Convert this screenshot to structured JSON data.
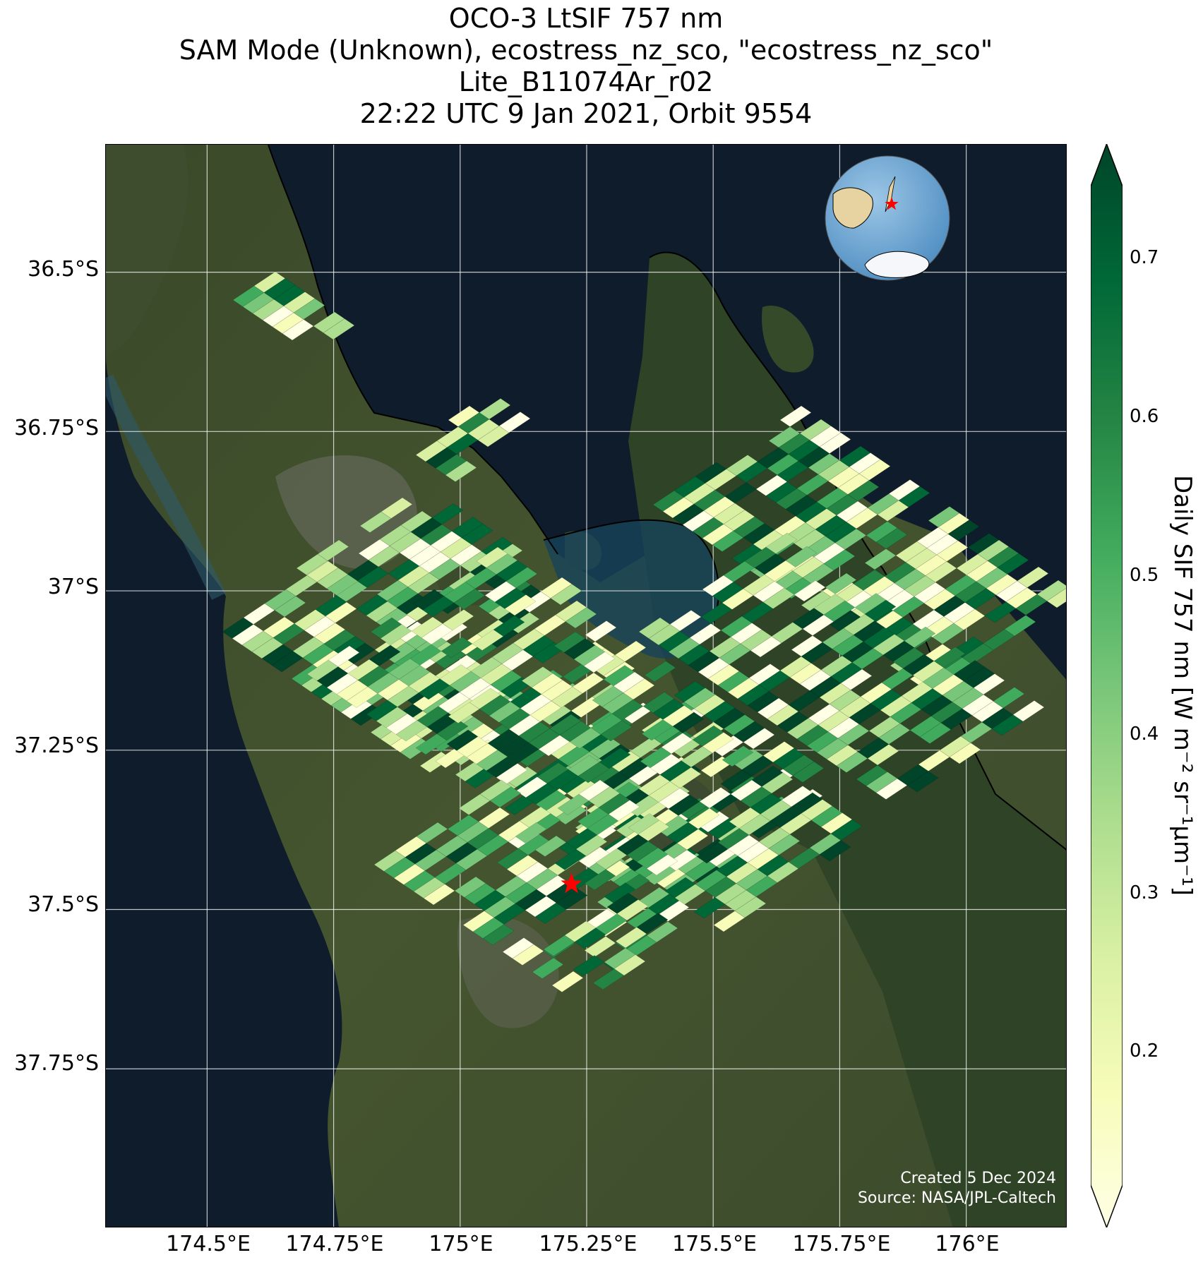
{
  "title": {
    "line1": "OCO-3 LtSIF 757 nm",
    "line2": "SAM Mode (Unknown), ecostress_nz_sco, \"ecostress_nz_sco\"",
    "line3": "Lite_B11074Ar_r02",
    "line4": "22:22 UTC 9 Jan 2021, Orbit 9554"
  },
  "map": {
    "lat_ticks": [
      "36.5°S",
      "36.75°S",
      "37°S",
      "37.25°S",
      "37.5°S",
      "37.75°S"
    ],
    "lon_ticks": [
      "174.5°E",
      "174.75°E",
      "175°E",
      "175.25°E",
      "175.5°E",
      "175.75°E",
      "176°E"
    ],
    "lon_range": [
      174.3,
      176.2
    ],
    "lat_range": [
      -36.3,
      -38.0
    ],
    "target_marker": {
      "lon": 175.22,
      "lat": -37.46,
      "symbol": "red-star"
    },
    "inset_globe": {
      "content": "globe-icon",
      "marker": "red-star"
    },
    "credit": {
      "created": "Created 5 Dec 2024",
      "source": "Source: NASA/JPL-Caltech"
    }
  },
  "colorbar": {
    "label": "Daily SIF 757 nm [W m⁻² sr⁻¹μm⁻¹]",
    "ticks": [
      "0.2",
      "0.3",
      "0.4",
      "0.5",
      "0.6",
      "0.7"
    ],
    "colormap": "YlGn",
    "extend": "both",
    "colors": [
      "#ffffe5",
      "#f7fcb9",
      "#d9f0a3",
      "#addd8e",
      "#78c679",
      "#41ab5d",
      "#238443",
      "#006837",
      "#004529"
    ]
  }
}
